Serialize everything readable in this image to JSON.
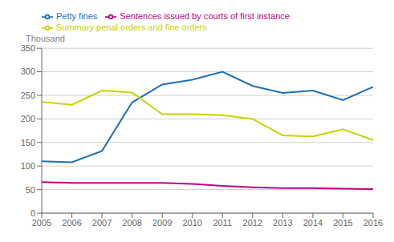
{
  "chart_data": {
    "type": "line",
    "y_label": "Thousand",
    "x": [
      2005,
      2006,
      2007,
      2008,
      2009,
      2010,
      2011,
      2012,
      2013,
      2014,
      2015,
      2016
    ],
    "series": [
      {
        "name": "Petty fines",
        "color": "#1f6fb5",
        "values": [
          110,
          108,
          132,
          235,
          273,
          283,
          300,
          270,
          255,
          260,
          240,
          268
        ]
      },
      {
        "name": "Summary penal orders and fine orders",
        "color": "#c8d400",
        "values": [
          236,
          230,
          260,
          256,
          210,
          210,
          208,
          200,
          165,
          163,
          178,
          155
        ]
      },
      {
        "name": "Sentences issued by courts of first instance",
        "color": "#c0008a",
        "values": [
          66,
          64,
          64,
          64,
          64,
          62,
          58,
          55,
          53,
          53,
          52,
          51
        ]
      }
    ],
    "xlim": [
      2005,
      2016
    ],
    "xticks": [
      2005,
      2006,
      2007,
      2008,
      2009,
      2010,
      2011,
      2012,
      2013,
      2014,
      2015,
      2016
    ],
    "ylim": [
      0,
      350
    ],
    "yticks": [
      0,
      50,
      100,
      150,
      200,
      250,
      300,
      350
    ],
    "grid": "y",
    "legend": "upper left"
  }
}
